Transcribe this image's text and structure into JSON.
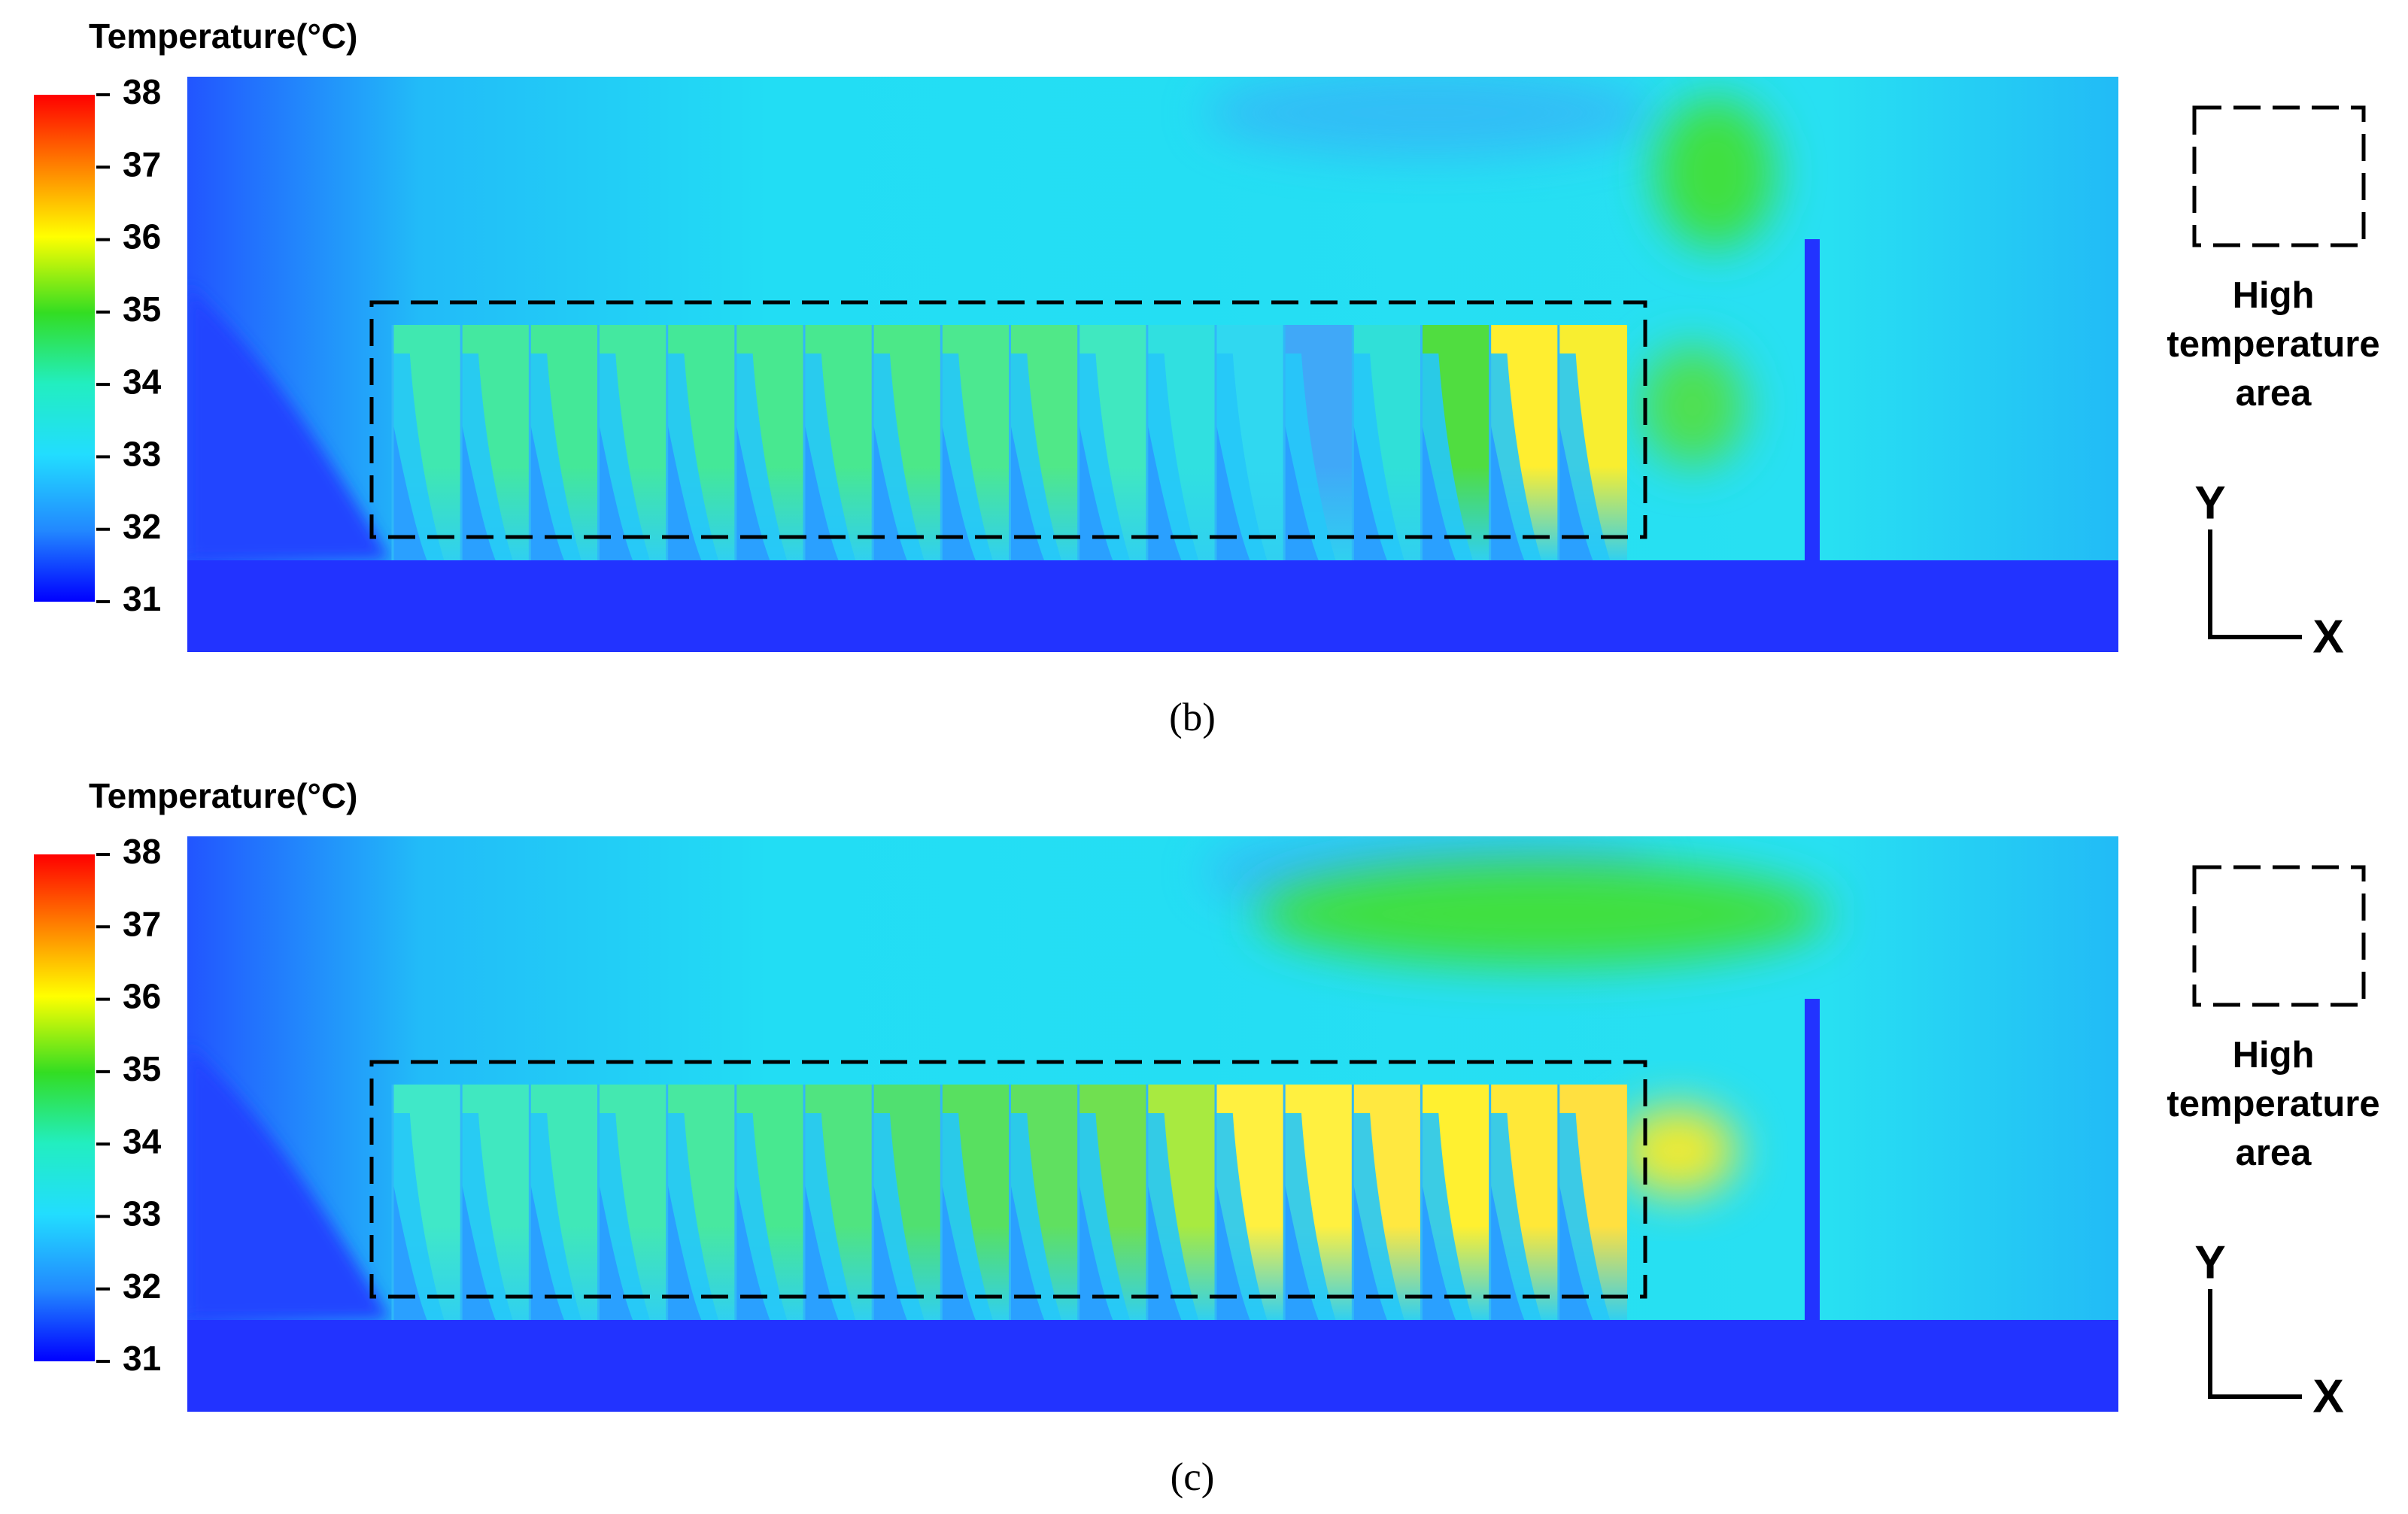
{
  "panels": [
    {
      "colorbar": {
        "title": "Temperature(°C)",
        "ticks": [
          38,
          37,
          36,
          35,
          34,
          33,
          32,
          31
        ]
      },
      "legend": {
        "label": "High temperature area"
      },
      "axes": {
        "y": "Y",
        "x": "X"
      },
      "caption": "(b)"
    },
    {
      "colorbar": {
        "title": "Temperature(°C)",
        "ticks": [
          38,
          37,
          36,
          35,
          34,
          33,
          32,
          31
        ]
      },
      "legend": {
        "label": "High temperature area"
      },
      "axes": {
        "y": "Y",
        "x": "X"
      },
      "caption": "(c)"
    }
  ]
}
